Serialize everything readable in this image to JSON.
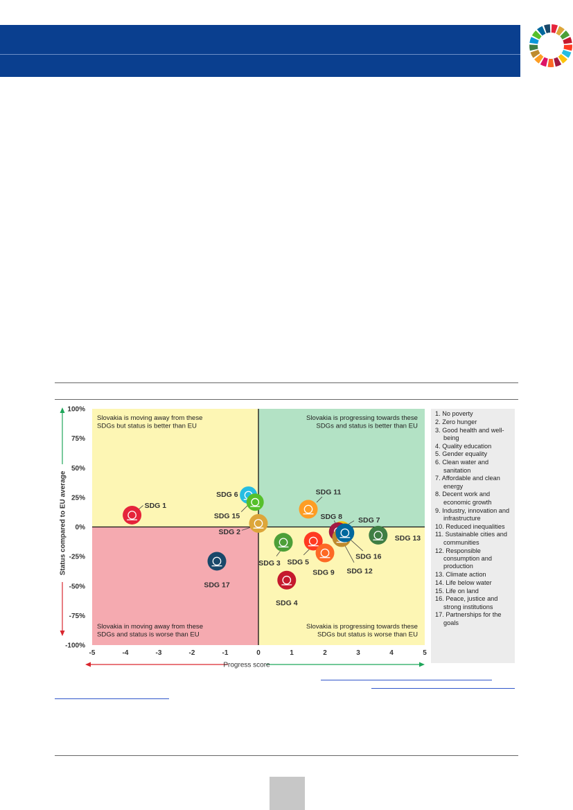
{
  "chart_data": {
    "type": "scatter",
    "xlabel": "Progress score",
    "ylabel": "Status compared to EU average",
    "xlim": [
      -5,
      5
    ],
    "ylim": [
      -100,
      100
    ],
    "x_ticks": [
      "-5",
      "-4",
      "-3",
      "-2",
      "-1",
      "0",
      "1",
      "2",
      "3",
      "4",
      "5"
    ],
    "y_ticks": [
      "100%",
      "75%",
      "50%",
      "25%",
      "0%",
      "-25%",
      "-50%",
      "-75%",
      "-100%"
    ],
    "grid": false,
    "quadrants": {
      "top_left": {
        "text": [
          "Slovakia is moving away from these",
          "SDGs but status is better than EU"
        ],
        "color": "#fdf6b4"
      },
      "top_right": {
        "text": [
          "Slovakia is progressing towards these",
          "SDGs and status is better than EU"
        ],
        "color": "#b3e2c5"
      },
      "bottom_left": {
        "text": [
          "Slovakia in moving away from these",
          "SDGs and status is worse than EU"
        ],
        "color": "#f5aab0"
      },
      "bottom_right": {
        "text": [
          "Slovakia is progressing towards these",
          "SDGs but status is worse than EU"
        ],
        "color": "#fdf6b4"
      }
    },
    "points": [
      {
        "label": "SDG 1",
        "x": -3.8,
        "y": 10,
        "color": "#e5243b",
        "icon": "people-icon"
      },
      {
        "label": "SDG 2",
        "x": 0.0,
        "y": 3,
        "color": "#dda63a",
        "icon": "bowl-icon"
      },
      {
        "label": "SDG 3",
        "x": 0.75,
        "y": -13,
        "color": "#4c9f38",
        "icon": "heartbeat-icon"
      },
      {
        "label": "SDG 4",
        "x": 0.85,
        "y": -45,
        "color": "#c5192d",
        "icon": "book-icon"
      },
      {
        "label": "SDG 5",
        "x": 1.65,
        "y": -12,
        "color": "#ff3a21",
        "icon": "gender-icon"
      },
      {
        "label": "SDG 6",
        "x": -0.3,
        "y": 27,
        "color": "#26bde2",
        "icon": "water-icon"
      },
      {
        "label": "SDG 7",
        "x": 2.5,
        "y": -3,
        "color": "#fcc30b",
        "icon": "sun-icon"
      },
      {
        "label": "SDG 8",
        "x": 2.4,
        "y": -4,
        "color": "#a21942",
        "icon": "chart-icon"
      },
      {
        "label": "SDG 9",
        "x": 2.0,
        "y": -22,
        "color": "#fd6925",
        "icon": "cubes-icon"
      },
      {
        "label": "SDG 11",
        "x": 1.5,
        "y": 15,
        "color": "#fd9d24",
        "icon": "buildings-icon"
      },
      {
        "label": "SDG 12",
        "x": 2.5,
        "y": -9,
        "color": "#bf8b2e",
        "icon": "infinity-icon"
      },
      {
        "label": "SDG 13",
        "x": 3.6,
        "y": -7,
        "color": "#3f7e44",
        "icon": "eye-icon"
      },
      {
        "label": "SDG 15",
        "x": -0.1,
        "y": 21,
        "color": "#56c02b",
        "icon": "tree-icon"
      },
      {
        "label": "SDG 16",
        "x": 2.6,
        "y": -5,
        "color": "#00689d",
        "icon": "dove-icon"
      },
      {
        "label": "SDG 17",
        "x": -1.25,
        "y": -29,
        "color": "#19486a",
        "icon": "flower-icon"
      }
    ],
    "legend": [
      "1. No poverty",
      "2. Zero hunger",
      "3. Good health and well-being",
      "4. Quality education",
      "5. Gender equality",
      "6. Clean water and sanitation",
      "7. Affordable and clean energy",
      "8. Decent work and economic growth",
      "9. Industry, innovation and infrastructure",
      "10. Reduced inequalities",
      "11. Sustainable cities and communities",
      "12. Responsible consumption and production",
      "13. Climate action",
      "14. Life below water",
      "15. Life on land",
      "16. Peace, justice and strong institutions",
      "17. Partnerships for the goals"
    ]
  },
  "colors": {
    "header_band": "#0a3f8f",
    "axis_arrow_negative": "#d9262e",
    "axis_arrow_positive": "#1fa65a"
  }
}
